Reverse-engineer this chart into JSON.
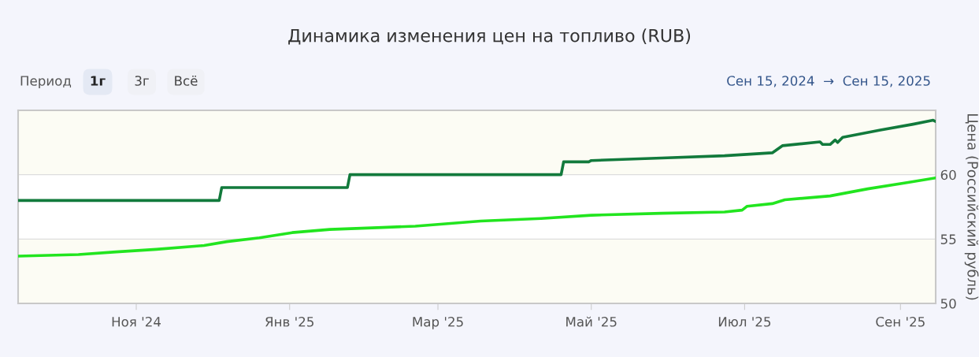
{
  "chart_data": {
    "type": "line",
    "title": "Динамика изменения цен на топливо (RUB)",
    "ylabel": "Цена (Российский рубль)",
    "annotations": [
      "Период",
      "1г",
      "3г",
      "Всё",
      "Сен 15, 2024  →  Сен 15, 2025"
    ],
    "xlim": [
      "2024-09-15",
      "2025-09-15"
    ],
    "xticks": [
      {
        "value": "2024-11-01",
        "label": "Ноя '24"
      },
      {
        "value": "2025-01-01",
        "label": "Янв '25"
      },
      {
        "value": "2025-03-01",
        "label": "Мар '25"
      },
      {
        "value": "2025-05-01",
        "label": "Май '25"
      },
      {
        "value": "2025-07-01",
        "label": "Июл '25"
      },
      {
        "value": "2025-09-01",
        "label": "Сен '25"
      }
    ],
    "ylim": [
      50,
      65
    ],
    "yticks": [
      50,
      55,
      60
    ],
    "grid": "y",
    "legend": false,
    "bands": [
      {
        "axis": "y",
        "from": 50,
        "to": 55,
        "color": "#fcfcf4"
      },
      {
        "axis": "y",
        "from": 60,
        "to": 65,
        "color": "#fcfcf4"
      }
    ],
    "series": [
      {
        "color": "#127a3c",
        "x": [
          "2024-09-15",
          "2024-12-04",
          "2024-12-05",
          "2025-01-24",
          "2025-01-25",
          "2025-04-19",
          "2025-04-20",
          "2025-04-30",
          "2025-05-01",
          "2025-05-29",
          "2025-06-23",
          "2025-07-12",
          "2025-07-16",
          "2025-07-31",
          "2025-08-01",
          "2025-08-04",
          "2025-08-06",
          "2025-08-07",
          "2025-08-09",
          "2025-08-24",
          "2025-09-06",
          "2025-09-14",
          "2025-09-15"
        ],
        "values": [
          58.0,
          58.0,
          59.0,
          59.0,
          60.0,
          60.0,
          61.0,
          61.0,
          61.1,
          61.3,
          61.47,
          61.7,
          62.25,
          62.55,
          62.35,
          62.35,
          62.7,
          62.5,
          62.9,
          63.47,
          63.92,
          64.23,
          64.13
        ]
      },
      {
        "color": "#22e51f",
        "x": [
          "2024-09-15",
          "2024-10-09",
          "2024-10-24",
          "2024-11-09",
          "2024-11-28",
          "2024-12-07",
          "2024-12-20",
          "2025-01-02",
          "2025-01-17",
          "2025-02-07",
          "2025-02-20",
          "2025-03-18",
          "2025-04-11",
          "2025-05-01",
          "2025-05-29",
          "2025-06-23",
          "2025-06-30",
          "2025-07-02",
          "2025-07-12",
          "2025-07-17",
          "2025-08-04",
          "2025-08-19",
          "2025-09-04",
          "2025-09-15"
        ],
        "values": [
          53.67,
          53.8,
          54.0,
          54.2,
          54.5,
          54.8,
          55.1,
          55.5,
          55.75,
          55.9,
          56.0,
          56.4,
          56.6,
          56.85,
          57.0,
          57.1,
          57.25,
          57.55,
          57.75,
          58.05,
          58.35,
          58.9,
          59.4,
          59.75
        ]
      }
    ]
  }
}
